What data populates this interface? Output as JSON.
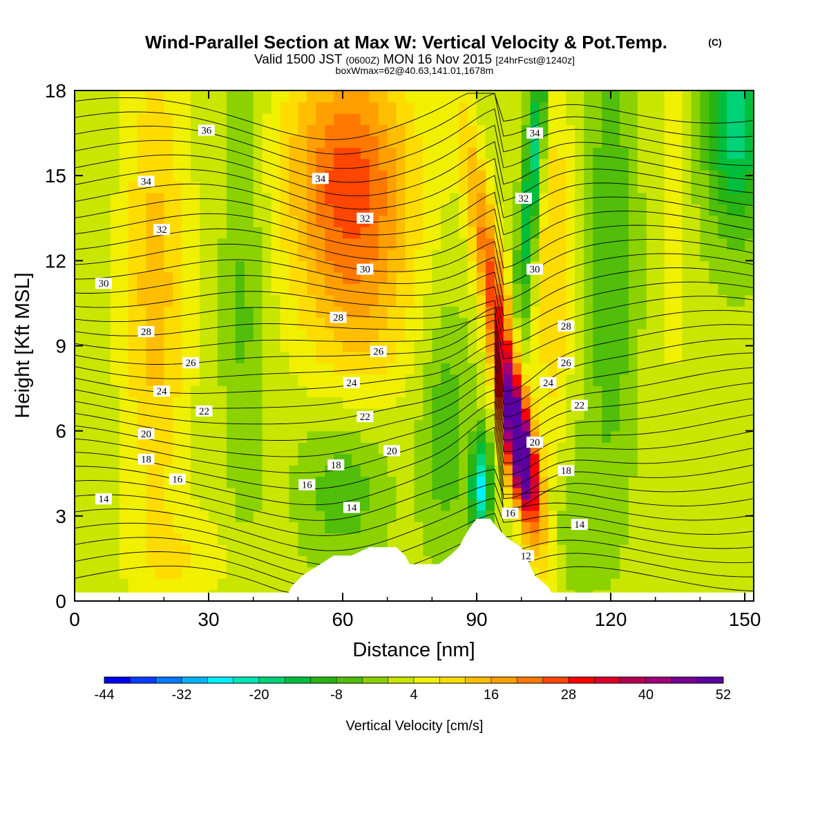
{
  "header": {
    "title": "Wind-Parallel Section at Max W: Vertical Velocity & Pot.Temp.",
    "copyright": "(C)",
    "valid_prefix": "Valid 1500 JST",
    "valid_z": "(0600Z)",
    "valid_date": "MON 16 Nov 2015",
    "forecast": "[24hrFcst@1240z]",
    "boxw": "boxWmax=62@40.63,141.01,1678m"
  },
  "chart_data": {
    "type": "heatmap",
    "title": "Wind-Parallel Section at Max W: Vertical Velocity & Pot.Temp.",
    "xlabel": "Distance [nm]",
    "ylabel": "Height [Kft MSL]",
    "xlim": [
      0,
      152
    ],
    "ylim": [
      0,
      18
    ],
    "x_ticks": [
      "0",
      "30",
      "60",
      "90",
      "120",
      "150"
    ],
    "y_ticks": [
      "0",
      "3",
      "6",
      "9",
      "12",
      "15",
      "18"
    ],
    "grid": false,
    "colorbar": {
      "label": "Vertical Velocity [cm/s]",
      "tick_labels": [
        "-44",
        "-32",
        "-20",
        "-8",
        "4",
        "16",
        "28",
        "40",
        "52"
      ],
      "bounds": [
        -44,
        52
      ],
      "step": 4,
      "colors": [
        "#0000f0",
        "#0a3cff",
        "#0a78ff",
        "#00b4ff",
        "#00f0ff",
        "#00e6b4",
        "#00d278",
        "#00be3c",
        "#28b414",
        "#50be0a",
        "#8cd200",
        "#c8e600",
        "#f0f000",
        "#ffdc00",
        "#ffbe00",
        "#ffa000",
        "#ff7800",
        "#ff4600",
        "#ff0000",
        "#dc0028",
        "#b40050",
        "#a00078",
        "#780096",
        "#5a00a0"
      ]
    },
    "contour_field": "Potential Temperature",
    "contour_labels": [
      {
        "text": "36",
        "x": 29.5,
        "y": 16.6
      },
      {
        "text": "34",
        "x": 16,
        "y": 14.8
      },
      {
        "text": "34",
        "x": 55,
        "y": 14.9
      },
      {
        "text": "34",
        "x": 103,
        "y": 16.5
      },
      {
        "text": "32",
        "x": 19.5,
        "y": 13.1
      },
      {
        "text": "32",
        "x": 65,
        "y": 13.5
      },
      {
        "text": "32",
        "x": 100.5,
        "y": 14.2
      },
      {
        "text": "30",
        "x": 6.5,
        "y": 11.2
      },
      {
        "text": "30",
        "x": 65,
        "y": 11.7
      },
      {
        "text": "30",
        "x": 103,
        "y": 11.7
      },
      {
        "text": "28",
        "x": 16,
        "y": 9.5
      },
      {
        "text": "28",
        "x": 59,
        "y": 10.0
      },
      {
        "text": "28",
        "x": 110,
        "y": 9.7
      },
      {
        "text": "26",
        "x": 26,
        "y": 8.4
      },
      {
        "text": "26",
        "x": 68,
        "y": 8.8
      },
      {
        "text": "26",
        "x": 110,
        "y": 8.4
      },
      {
        "text": "24",
        "x": 19.5,
        "y": 7.4
      },
      {
        "text": "24",
        "x": 62,
        "y": 7.7
      },
      {
        "text": "24",
        "x": 106,
        "y": 7.7
      },
      {
        "text": "22",
        "x": 29,
        "y": 6.7
      },
      {
        "text": "22",
        "x": 65,
        "y": 6.5
      },
      {
        "text": "22",
        "x": 113,
        "y": 6.9
      },
      {
        "text": "20",
        "x": 16,
        "y": 5.9
      },
      {
        "text": "20",
        "x": 71,
        "y": 5.3
      },
      {
        "text": "20",
        "x": 103,
        "y": 5.6
      },
      {
        "text": "18",
        "x": 16,
        "y": 5.0
      },
      {
        "text": "18",
        "x": 58.5,
        "y": 4.8
      },
      {
        "text": "18",
        "x": 110,
        "y": 4.6
      },
      {
        "text": "16",
        "x": 23,
        "y": 4.3
      },
      {
        "text": "16",
        "x": 52,
        "y": 4.1
      },
      {
        "text": "16",
        "x": 97.5,
        "y": 3.1
      },
      {
        "text": "14",
        "x": 6.5,
        "y": 3.6
      },
      {
        "text": "14",
        "x": 62,
        "y": 3.3
      },
      {
        "text": "14",
        "x": 113,
        "y": 2.7
      },
      {
        "text": "12",
        "x": 101,
        "y": 1.6
      }
    ],
    "terrain_profile": {
      "x": [
        47,
        48.5,
        51,
        54,
        58,
        62,
        66,
        69,
        72,
        74,
        75,
        76,
        81,
        81.5,
        84,
        86,
        87,
        88.5,
        90,
        93,
        94.5,
        97,
        100,
        103,
        106,
        108
      ],
      "y": [
        0.0,
        0.5,
        0.9,
        1.2,
        1.6,
        1.6,
        1.9,
        1.9,
        1.9,
        1.6,
        1.3,
        1.3,
        1.3,
        1.3,
        1.6,
        1.9,
        2.2,
        2.6,
        2.9,
        2.9,
        2.6,
        2.2,
        1.9,
        0.9,
        0.5,
        0.0
      ]
    }
  }
}
